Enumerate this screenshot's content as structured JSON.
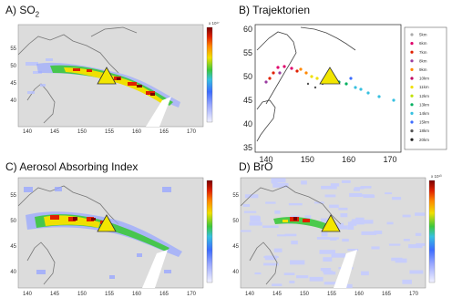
{
  "panels": {
    "a": {
      "title_prefix": "A) SO",
      "title_sub": "2",
      "lon_ticks": [
        "140",
        "145",
        "150",
        "155",
        "160",
        "165",
        "170"
      ],
      "lat_ticks": [
        "55",
        "50",
        "45",
        "40"
      ],
      "colorbar_exponent": "x 10¹⁷"
    },
    "b": {
      "title": "B) Trajektorien",
      "lon_ticks": [
        "140",
        "150",
        "160",
        "170"
      ],
      "lat_ticks": [
        "60",
        "55",
        "50",
        "45",
        "40",
        "35"
      ],
      "legend": [
        "5km",
        "6km",
        "7km",
        "8km",
        "9km",
        "10km",
        "11km",
        "12km",
        "13km",
        "14km",
        "15km",
        "18km",
        "20km"
      ]
    },
    "c": {
      "title": "C) Aerosol Absorbing Index",
      "lon_ticks": [
        "140",
        "145",
        "150",
        "155",
        "160",
        "165",
        "170"
      ],
      "lat_ticks": [
        "55",
        "50",
        "45",
        "40"
      ]
    },
    "d": {
      "title": "D) BrO",
      "lon_ticks": [
        "140",
        "145",
        "150",
        "155",
        "160",
        "165",
        "170"
      ],
      "lat_ticks": [
        "55",
        "50",
        "45",
        "40"
      ],
      "colorbar_exponent": "x 10¹³"
    }
  },
  "colors": {
    "volcano_marker": "#f2e600",
    "map_background": "#dcdcdc",
    "colorbar_top": "#8b0000",
    "colorbar_bottom": "#e8e8ff"
  }
}
